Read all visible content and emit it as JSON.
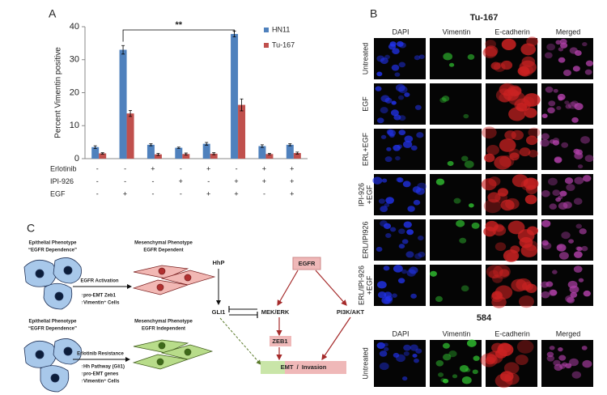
{
  "panel_labels": [
    "A",
    "B",
    "C"
  ],
  "chart_data": {
    "type": "bar",
    "ylabel": "Percent Vimentin positive",
    "categories": [
      null,
      null,
      null,
      null,
      null,
      null,
      null,
      null
    ],
    "series": [
      {
        "name": "HN11",
        "color": "#4f81bd",
        "values": [
          3.5,
          33,
          4.2,
          3.3,
          4.5,
          37.8,
          3.8,
          4.2
        ],
        "errors": [
          0.4,
          1.3,
          0.3,
          0.2,
          0.4,
          0.9,
          0.4,
          0.3
        ]
      },
      {
        "name": "Tu-167",
        "color": "#c0504d",
        "values": [
          1.6,
          13.7,
          1.3,
          1.4,
          1.5,
          16.3,
          1.4,
          1.7
        ],
        "errors": [
          0.2,
          0.9,
          0.3,
          0.3,
          0.3,
          1.8,
          0.2,
          0.3
        ]
      }
    ],
    "ylim": [
      0,
      40
    ],
    "yticks": [
      0,
      10,
      20,
      30,
      40
    ],
    "grid": false,
    "legend": "upper right",
    "annotation": "**",
    "treatments": [
      {
        "label": "Erlotinib",
        "values": [
          "-",
          "-",
          "+",
          "-",
          "+",
          "-",
          "+",
          "+"
        ]
      },
      {
        "label": "IPI-926",
        "values": [
          "-",
          "-",
          "-",
          "+",
          "-",
          "+",
          "+",
          "+"
        ]
      },
      {
        "label": "EGF",
        "values": [
          "-",
          "+",
          "-",
          "-",
          "+",
          "+",
          "-",
          "+"
        ]
      }
    ]
  },
  "microscopy": [
    {
      "title": "Tu-167",
      "columns": [
        "DAPI",
        "Vimentin",
        "E-cadherin",
        "Merged"
      ],
      "rows": [
        [
          "Untreated"
        ],
        [
          "EGF"
        ],
        [
          "ERL+EGF"
        ],
        [
          "IPI-926",
          "+EGF"
        ],
        [
          "ERL/IPI926"
        ],
        [
          "ERL/IPI-926",
          "+EGF"
        ]
      ]
    },
    {
      "title": "584",
      "columns": [
        "DAPI",
        "Vimentin",
        "E-cadherin",
        "Merged"
      ],
      "rows": [
        [
          "Untreated"
        ]
      ]
    }
  ],
  "diagram": {
    "phenotypes": [
      {
        "epithelial": [
          "Epithelial Phenotype",
          "“EGFR Dependence”"
        ],
        "transition": "EGFR Activation",
        "changes": [
          "↑pro-EMT Zeb1",
          "↑Vimentin⁺ Cells"
        ],
        "mesenchymal": [
          "Mesenchymal Phenotype",
          "EGFR Dependent"
        ]
      },
      {
        "epithelial": [
          "Epithelial Phenotype",
          "“EGFR Dependence”"
        ],
        "transition": "Erlotinib Resistance",
        "changes": [
          "↑Hh Pathway (Gli1)",
          "↑pro-EMT genes",
          "↑Vimentin⁺ Cells"
        ],
        "mesenchymal": [
          "Mesenchymal Phenotype",
          "EGFR Independent"
        ]
      }
    ],
    "nodes": {
      "hhp": "HhP",
      "gli1": "GLI1",
      "egfr": "EGFR",
      "mek_erk": "MEK/ERK",
      "pi3k_akt": "PI3K/AKT",
      "zeb1": "ZEB1",
      "emt": "EMT  /  Invasion"
    }
  }
}
